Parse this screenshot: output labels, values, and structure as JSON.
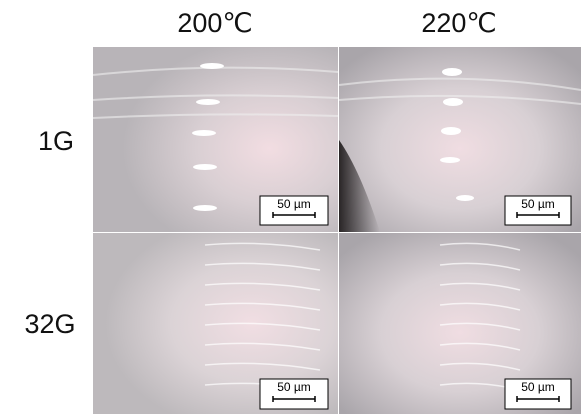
{
  "columns": [
    "200℃",
    "220℃"
  ],
  "rows": [
    "1G",
    "32G"
  ],
  "panels": [
    {
      "scale_label": "50 µm"
    },
    {
      "scale_label": "50 µm"
    },
    {
      "scale_label": "50 µm"
    },
    {
      "scale_label": "50 µm"
    }
  ]
}
